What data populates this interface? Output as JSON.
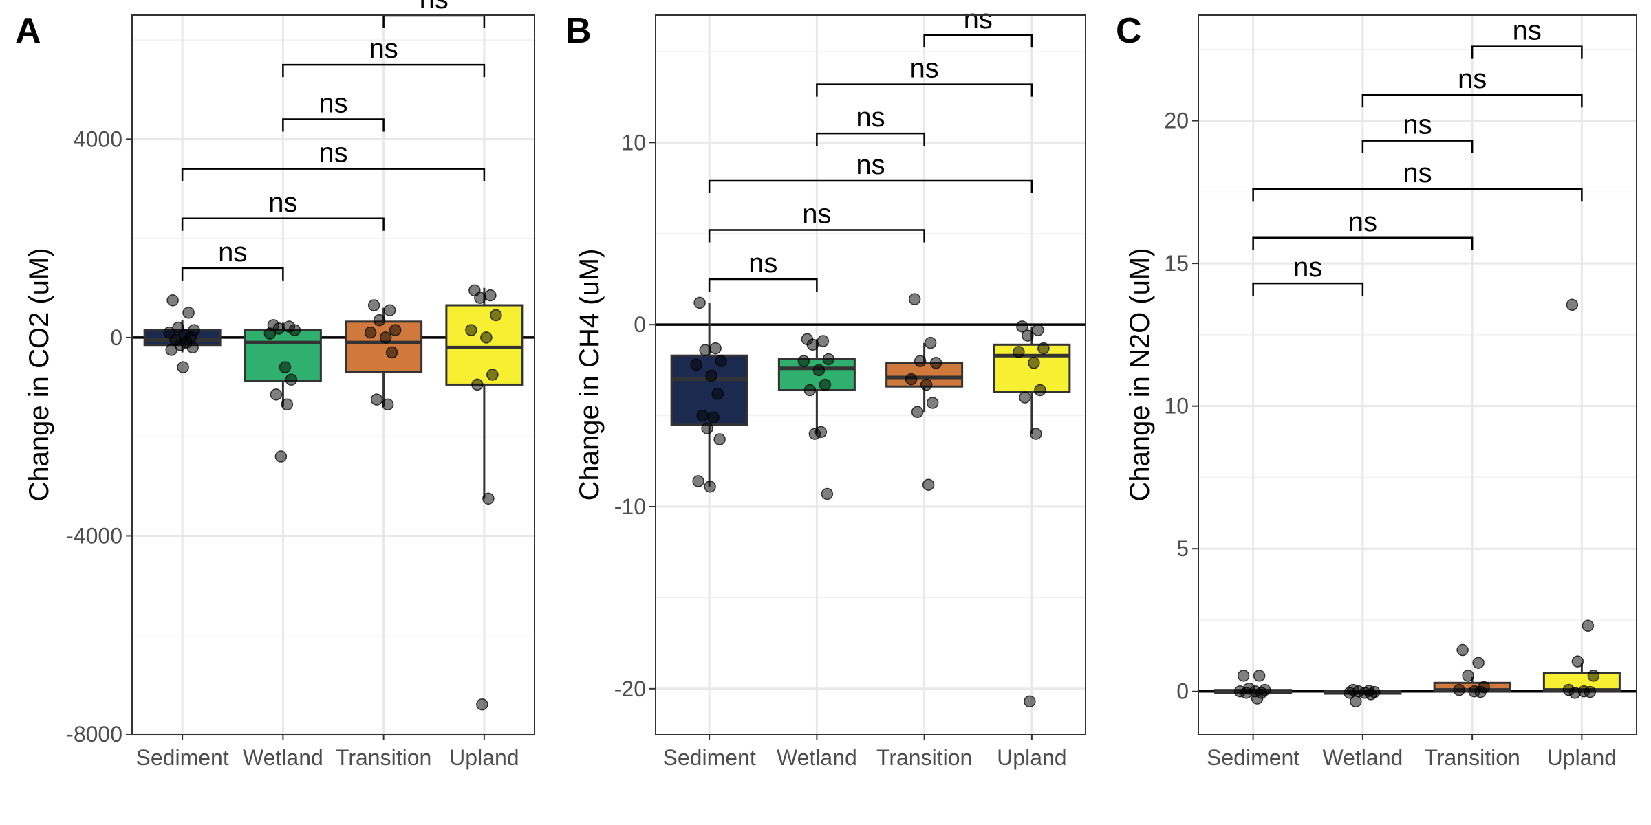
{
  "chart_data": [
    {
      "panel": "A",
      "type": "box",
      "ylabel": "Change in CO2 (uM)",
      "categories": [
        "Sediment",
        "Wetland",
        "Transition",
        "Upland"
      ],
      "ylim": [
        -8000,
        6500
      ],
      "yticks": [
        4000,
        0,
        -4000,
        -8000
      ],
      "yticklabels": [
        "4000",
        "0",
        "-4000",
        "-8000"
      ],
      "reference_line": 0,
      "colors": [
        "#1b2a4e",
        "#2fb06f",
        "#cf7a3c",
        "#f7f032"
      ],
      "boxes": [
        {
          "category": "Sediment",
          "q1": -150,
          "median": -50,
          "q3": 150,
          "whisker_low": -300,
          "whisker_high": 350
        },
        {
          "category": "Wetland",
          "q1": -880,
          "median": -100,
          "q3": 150,
          "whisker_low": -1400,
          "whisker_high": 300
        },
        {
          "category": "Transition",
          "q1": -700,
          "median": -100,
          "q3": 320,
          "whisker_low": -1400,
          "whisker_high": 600
        },
        {
          "category": "Upland",
          "q1": -950,
          "median": -200,
          "q3": 650,
          "whisker_low": -3250,
          "whisker_high": 1000
        }
      ],
      "points": [
        {
          "category": "Sediment",
          "values": [
            750,
            500,
            200,
            150,
            100,
            50,
            0,
            -50,
            -100,
            -150,
            -200,
            -250,
            -600
          ]
        },
        {
          "category": "Wetland",
          "values": [
            250,
            220,
            180,
            150,
            80,
            -600,
            -850,
            -1150,
            -1350,
            -2400
          ]
        },
        {
          "category": "Transition",
          "values": [
            650,
            550,
            350,
            150,
            100,
            0,
            -300,
            -1250,
            -1350
          ]
        },
        {
          "category": "Upland",
          "values": [
            950,
            850,
            800,
            450,
            150,
            0,
            -750,
            -950,
            -3250,
            -7400
          ]
        }
      ],
      "comparisons": [
        {
          "from": "Transition",
          "to": "Upland",
          "label": "ns",
          "y": 6500
        },
        {
          "from": "Wetland",
          "to": "Upland",
          "label": "ns",
          "y": 5500
        },
        {
          "from": "Wetland",
          "to": "Transition",
          "label": "ns",
          "y": 4400
        },
        {
          "from": "Sediment",
          "to": "Upland",
          "label": "ns",
          "y": 3400
        },
        {
          "from": "Sediment",
          "to": "Transition",
          "label": "ns",
          "y": 2400
        },
        {
          "from": "Sediment",
          "to": "Wetland",
          "label": "ns",
          "y": 1400
        }
      ]
    },
    {
      "panel": "B",
      "type": "box",
      "ylabel": "Change in CH4 (uM)",
      "categories": [
        "Sediment",
        "Wetland",
        "Transition",
        "Upland"
      ],
      "ylim": [
        -22.5,
        17
      ],
      "yticks": [
        10,
        0,
        -10,
        -20
      ],
      "yticklabels": [
        "10",
        "0",
        "-10",
        "-20"
      ],
      "reference_line": 0,
      "colors": [
        "#1b2a4e",
        "#2fb06f",
        "#cf7a3c",
        "#f7f032"
      ],
      "boxes": [
        {
          "category": "Sediment",
          "q1": -5.5,
          "median": -3.0,
          "q3": -1.7,
          "whisker_low": -8.9,
          "whisker_high": 1.2
        },
        {
          "category": "Wetland",
          "q1": -3.6,
          "median": -2.4,
          "q3": -1.9,
          "whisker_low": -6.0,
          "whisker_high": -0.8
        },
        {
          "category": "Transition",
          "q1": -3.4,
          "median": -2.9,
          "q3": -2.1,
          "whisker_low": -4.8,
          "whisker_high": -1.0
        },
        {
          "category": "Upland",
          "q1": -3.7,
          "median": -1.7,
          "q3": -1.1,
          "whisker_low": -6.0,
          "whisker_high": -0.1
        }
      ],
      "points": [
        {
          "category": "Sediment",
          "values": [
            1.2,
            -1.3,
            -1.4,
            -2.0,
            -2.2,
            -2.8,
            -3.8,
            -5.0,
            -5.1,
            -5.7,
            -6.3,
            -8.6,
            -8.9
          ]
        },
        {
          "category": "Wetland",
          "values": [
            -0.8,
            -0.9,
            -1.1,
            -1.9,
            -2.0,
            -2.5,
            -3.3,
            -3.6,
            -5.9,
            -6.0,
            -9.3
          ]
        },
        {
          "category": "Transition",
          "values": [
            1.4,
            -1.0,
            -2.0,
            -2.1,
            -3.0,
            -3.3,
            -4.3,
            -4.8,
            -8.8
          ]
        },
        {
          "category": "Upland",
          "values": [
            -0.1,
            -0.3,
            -0.6,
            -1.3,
            -1.5,
            -2.1,
            -3.6,
            -4.0,
            -6.0,
            -20.7
          ]
        }
      ],
      "comparisons": [
        {
          "from": "Transition",
          "to": "Upland",
          "label": "ns",
          "y": 15.9
        },
        {
          "from": "Wetland",
          "to": "Upland",
          "label": "ns",
          "y": 13.2
        },
        {
          "from": "Wetland",
          "to": "Transition",
          "label": "ns",
          "y": 10.5
        },
        {
          "from": "Sediment",
          "to": "Upland",
          "label": "ns",
          "y": 7.9
        },
        {
          "from": "Sediment",
          "to": "Transition",
          "label": "ns",
          "y": 5.2
        },
        {
          "from": "Sediment",
          "to": "Wetland",
          "label": "ns",
          "y": 2.5
        }
      ]
    },
    {
      "panel": "C",
      "type": "box",
      "ylabel": "Change in N2O (uM)",
      "categories": [
        "Sediment",
        "Wetland",
        "Transition",
        "Upland"
      ],
      "ylim": [
        -1.5,
        23.7
      ],
      "yticks": [
        20,
        15,
        10,
        5,
        0
      ],
      "yticklabels": [
        "20",
        "15",
        "10",
        "5",
        "0"
      ],
      "reference_line": 0,
      "colors": [
        "#1b2a4e",
        "#2fb06f",
        "#cf7a3c",
        "#f7f032"
      ],
      "boxes": [
        {
          "category": "Sediment",
          "q1": -0.05,
          "median": 0.0,
          "q3": 0.05,
          "whisker_low": -0.1,
          "whisker_high": 0.1
        },
        {
          "category": "Wetland",
          "q1": -0.08,
          "median": -0.02,
          "q3": 0.02,
          "whisker_low": -0.12,
          "whisker_high": 0.06
        },
        {
          "category": "Transition",
          "q1": 0.0,
          "median": 0.05,
          "q3": 0.3,
          "whisker_low": -0.05,
          "whisker_high": 0.5
        },
        {
          "category": "Upland",
          "q1": 0.0,
          "median": 0.05,
          "q3": 0.65,
          "whisker_low": -0.05,
          "whisker_high": 1.0
        }
      ],
      "points": [
        {
          "category": "Sediment",
          "values": [
            0.55,
            0.55,
            0.1,
            0.05,
            0.0,
            0.0,
            -0.05,
            -0.05,
            -0.25
          ]
        },
        {
          "category": "Wetland",
          "values": [
            0.05,
            0.02,
            0.0,
            -0.02,
            -0.05,
            -0.05,
            -0.1,
            -0.35
          ]
        },
        {
          "category": "Transition",
          "values": [
            1.45,
            1.0,
            0.55,
            0.15,
            0.05,
            0.0,
            -0.02
          ]
        },
        {
          "category": "Upland",
          "values": [
            13.55,
            2.3,
            1.05,
            0.55,
            0.05,
            0.0,
            -0.02,
            -0.05
          ]
        }
      ],
      "comparisons": [
        {
          "from": "Transition",
          "to": "Upland",
          "label": "ns",
          "y": 22.6
        },
        {
          "from": "Wetland",
          "to": "Upland",
          "label": "ns",
          "y": 20.9
        },
        {
          "from": "Wetland",
          "to": "Transition",
          "label": "ns",
          "y": 19.3
        },
        {
          "from": "Sediment",
          "to": "Upland",
          "label": "ns",
          "y": 17.6
        },
        {
          "from": "Sediment",
          "to": "Transition",
          "label": "ns",
          "y": 15.9
        },
        {
          "from": "Sediment",
          "to": "Wetland",
          "label": "ns",
          "y": 14.3
        }
      ]
    }
  ]
}
